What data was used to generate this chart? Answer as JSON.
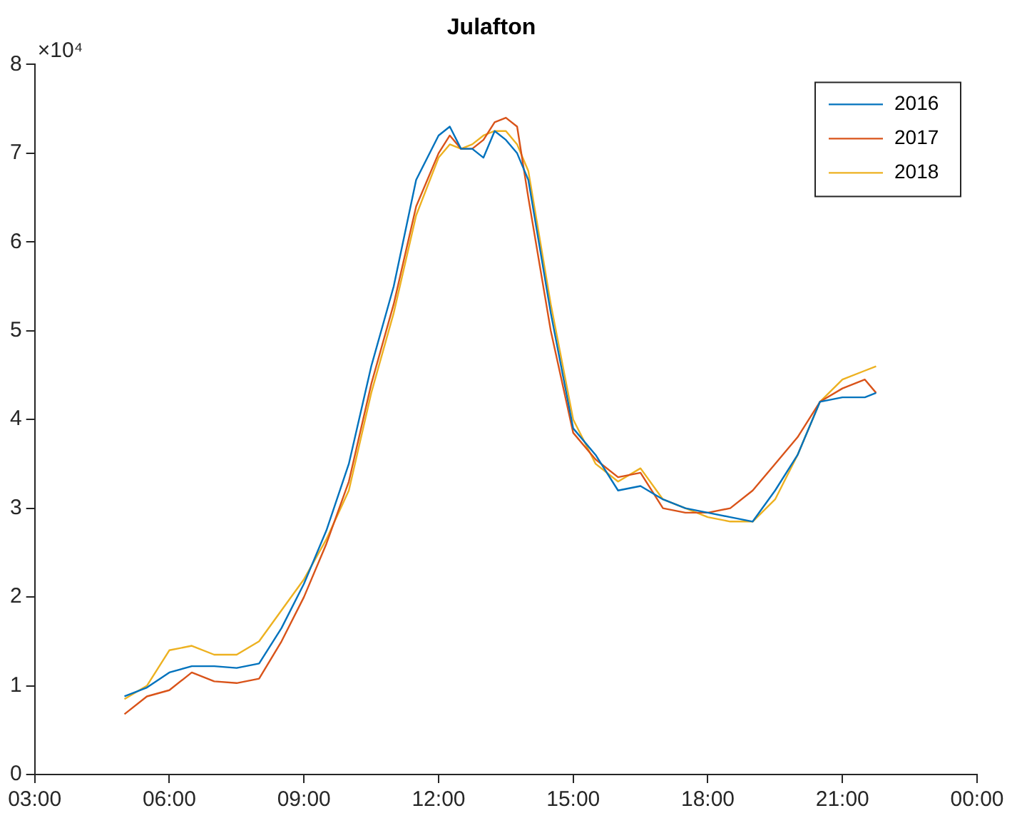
{
  "chart_data": {
    "type": "line",
    "title": "Julafton",
    "annotations": [
      "×10⁴"
    ],
    "x": [
      5,
      5.5,
      6,
      6.5,
      7,
      7.5,
      8,
      8.5,
      9,
      9.5,
      10,
      10.5,
      11,
      11.5,
      12,
      12.25,
      12.5,
      12.75,
      13,
      13.25,
      13.5,
      13.75,
      14,
      14.5,
      15,
      15.5,
      16,
      16.5,
      17,
      17.5,
      18,
      18.5,
      19,
      19.5,
      20,
      20.5,
      21,
      21.5,
      21.75
    ],
    "series": [
      {
        "name": "2016",
        "color": "#0072bd",
        "values": [
          0.88,
          0.98,
          1.15,
          1.22,
          1.22,
          1.2,
          1.25,
          1.65,
          2.15,
          2.75,
          3.5,
          4.6,
          5.5,
          6.7,
          7.2,
          7.3,
          7.05,
          7.05,
          6.95,
          7.25,
          7.15,
          7.0,
          6.7,
          5.2,
          3.9,
          3.6,
          3.2,
          3.25,
          3.1,
          3.0,
          2.95,
          2.9,
          2.85,
          3.2,
          3.6,
          4.2,
          4.25,
          4.25,
          4.3
        ]
      },
      {
        "name": "2017",
        "color": "#d95319",
        "values": [
          0.68,
          0.88,
          0.95,
          1.15,
          1.05,
          1.03,
          1.08,
          1.5,
          2.0,
          2.6,
          3.3,
          4.4,
          5.3,
          6.4,
          7.0,
          7.2,
          7.05,
          7.05,
          7.15,
          7.35,
          7.4,
          7.3,
          6.5,
          5.0,
          3.85,
          3.55,
          3.35,
          3.4,
          3.0,
          2.95,
          2.95,
          3.0,
          3.2,
          3.5,
          3.8,
          4.2,
          4.35,
          4.45,
          4.3
        ]
      },
      {
        "name": "2018",
        "color": "#edb120",
        "values": [
          0.85,
          1.0,
          1.4,
          1.45,
          1.35,
          1.35,
          1.5,
          1.85,
          2.2,
          2.65,
          3.2,
          4.3,
          5.2,
          6.3,
          6.95,
          7.1,
          7.05,
          7.1,
          7.2,
          7.25,
          7.25,
          7.1,
          6.8,
          5.3,
          4.0,
          3.5,
          3.3,
          3.45,
          3.1,
          3.0,
          2.9,
          2.85,
          2.85,
          3.1,
          3.6,
          4.2,
          4.45,
          4.55,
          4.6
        ]
      }
    ],
    "xlim": [
      3,
      24
    ],
    "xticks": [
      {
        "value": 3,
        "label": "03:00"
      },
      {
        "value": 6,
        "label": "06:00"
      },
      {
        "value": 9,
        "label": "09:00"
      },
      {
        "value": 12,
        "label": "12:00"
      },
      {
        "value": 15,
        "label": "15:00"
      },
      {
        "value": 18,
        "label": "18:00"
      },
      {
        "value": 21,
        "label": "21:00"
      },
      {
        "value": 24,
        "label": "00:00"
      }
    ],
    "ylim": [
      0,
      8
    ],
    "yticks": [
      0,
      1,
      2,
      3,
      4,
      5,
      6,
      7,
      8
    ],
    "grid": false,
    "legend": "top right",
    "marker": "none",
    "line_style": "solid"
  }
}
